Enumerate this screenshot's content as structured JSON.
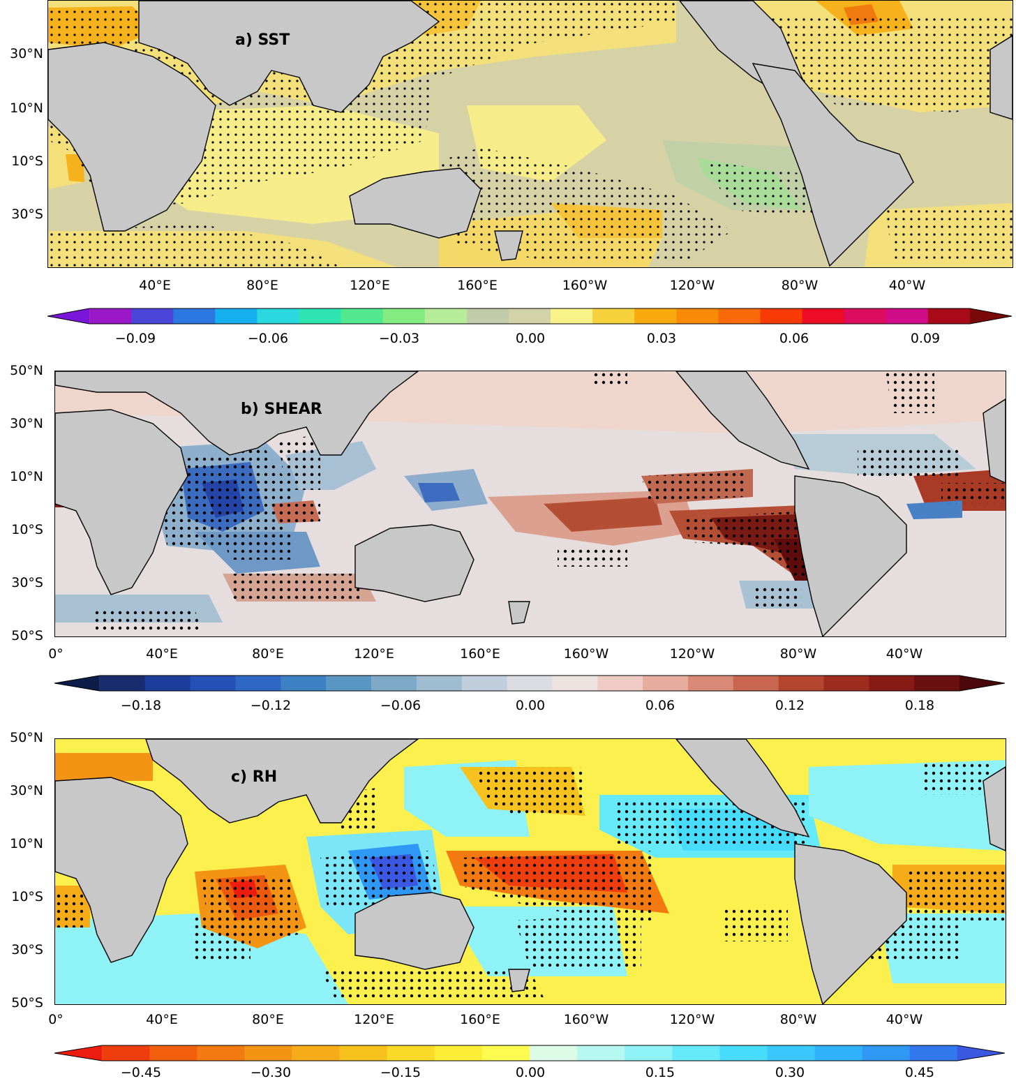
{
  "panels": [
    {
      "id": "sst",
      "title": "a) SST",
      "lat_ticks": [
        "30°N",
        "10°N",
        "10°S",
        "30°S"
      ],
      "lon_ticks": [
        "40°E",
        "80°E",
        "120°E",
        "160°E",
        "160°W",
        "120°W",
        "80°W",
        "40°W"
      ],
      "colorbar": {
        "labels": [
          "−0.09",
          "−0.06",
          "−0.03",
          "0.00",
          "0.03",
          "0.06",
          "0.09"
        ],
        "colors": [
          "#7a16d8",
          "#9a18c8",
          "#4a44d8",
          "#2a78e0",
          "#16b0f0",
          "#2ad8e0",
          "#2ee4b0",
          "#52e890",
          "#82ec82",
          "#b6ec9a",
          "#c2ccaa",
          "#d4d2a8",
          "#f8f288",
          "#f6d23c",
          "#f8aa0e",
          "#f88a06",
          "#f86a08",
          "#f83a06",
          "#ec0c26",
          "#dc0c5e",
          "#d00c88",
          "#a80a1a",
          "#7a0a0a"
        ]
      }
    },
    {
      "id": "shear",
      "title": "b) SHEAR",
      "lat_ticks": [
        "50°N",
        "30°N",
        "10°N",
        "10°S",
        "30°S",
        "50°S"
      ],
      "lon_ticks": [
        "0°",
        "40°E",
        "80°E",
        "120°E",
        "160°E",
        "160°W",
        "120°W",
        "80°W",
        "40°W"
      ],
      "colorbar": {
        "labels": [
          "−0.18",
          "−0.12",
          "−0.06",
          "0.00",
          "0.06",
          "0.12",
          "0.18"
        ],
        "colors": [
          "#0e1c4a",
          "#182c6e",
          "#1c3c9a",
          "#2450b8",
          "#2e68c4",
          "#3e80c4",
          "#5a96c4",
          "#7eaac8",
          "#a0bcd0",
          "#c0cede",
          "#dcdde2",
          "#ece2e0",
          "#eecbc4",
          "#e6ac9e",
          "#d88a76",
          "#c86650",
          "#b44630",
          "#9e2c1e",
          "#861a14",
          "#6a1010",
          "#4a080a"
        ]
      }
    },
    {
      "id": "rh",
      "title": "c) RH",
      "lat_ticks": [
        "50°N",
        "30°N",
        "10°N",
        "10°S",
        "30°S",
        "50°S"
      ],
      "lon_ticks": [
        "0°",
        "40°E",
        "80°E",
        "120°E",
        "160°E",
        "160°W",
        "120°W",
        "80°W",
        "40°W"
      ],
      "colorbar": {
        "labels": [
          "−0.45",
          "−0.30",
          "−0.15",
          "0.00",
          "0.15",
          "0.30",
          "0.45"
        ],
        "colors": [
          "#ec1c0e",
          "#ee3e0e",
          "#f05e0e",
          "#f27a10",
          "#f49414",
          "#f6ac18",
          "#f8c21e",
          "#fada28",
          "#fcee36",
          "#fefc4e",
          "#dcfce8",
          "#b6f8f0",
          "#8ef2f6",
          "#66eafa",
          "#48dcfc",
          "#3ac8fc",
          "#30b2fa",
          "#2e98f4",
          "#3078ec",
          "#3a58e2"
        ]
      }
    }
  ]
}
